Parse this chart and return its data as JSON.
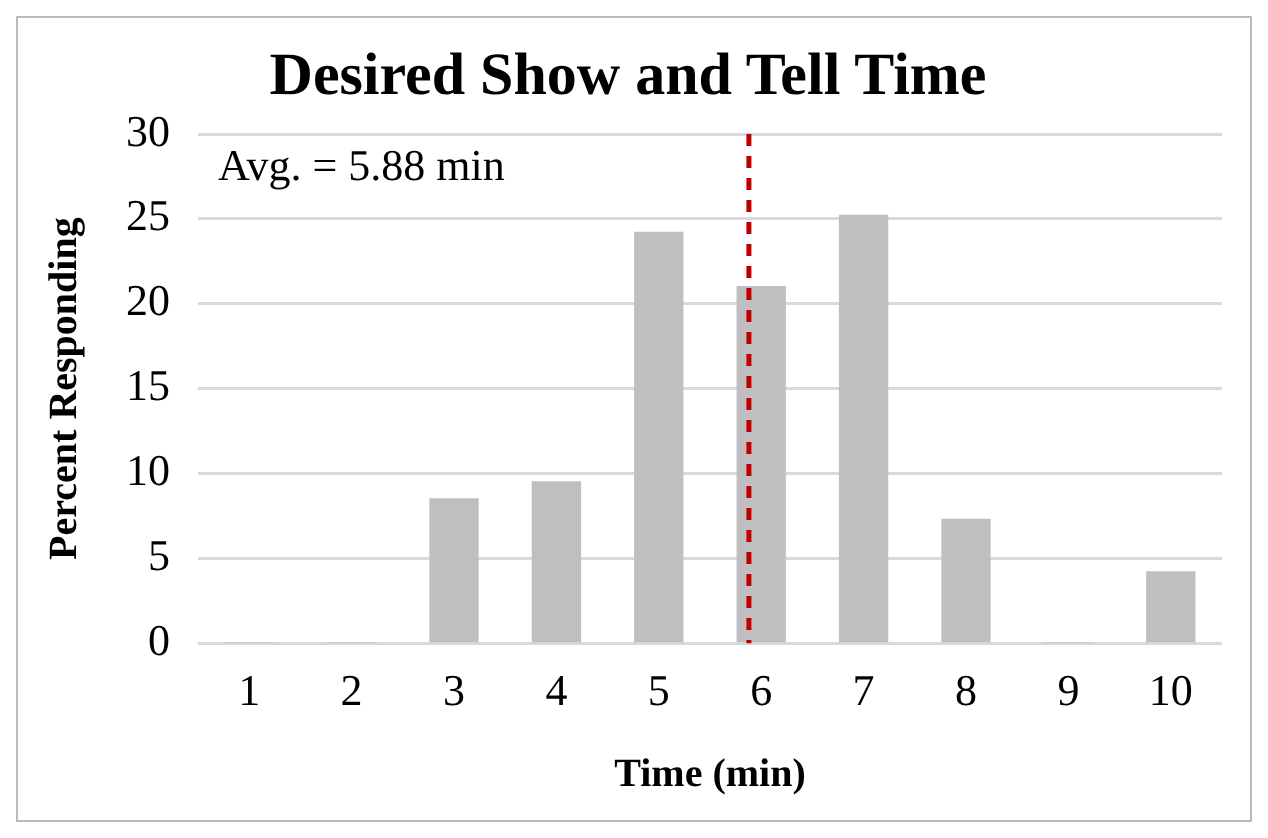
{
  "chart_data": {
    "type": "bar",
    "title": "Desired Show and Tell Time",
    "xlabel": "Time (min)",
    "ylabel": "Percent Responding",
    "x": [
      1,
      2,
      3,
      4,
      5,
      6,
      7,
      8,
      9,
      10
    ],
    "values": [
      0,
      0,
      8.5,
      9.5,
      24.2,
      21.0,
      25.2,
      7.3,
      0,
      4.2
    ],
    "color": "#bfbfbf",
    "xlim": [
      0.5,
      10.5
    ],
    "xticks": [
      1,
      2,
      3,
      4,
      5,
      6,
      7,
      8,
      9,
      10
    ],
    "ylim": [
      0,
      30
    ],
    "yticks": [
      0,
      5,
      10,
      15,
      20,
      25,
      30
    ],
    "grid": "y",
    "annotations": [
      "Avg. = 5.88 min"
    ],
    "ref_lines": [
      {
        "axis": "x",
        "value": 5.88,
        "color": "#c00000",
        "line_style": "dashed"
      }
    ]
  }
}
